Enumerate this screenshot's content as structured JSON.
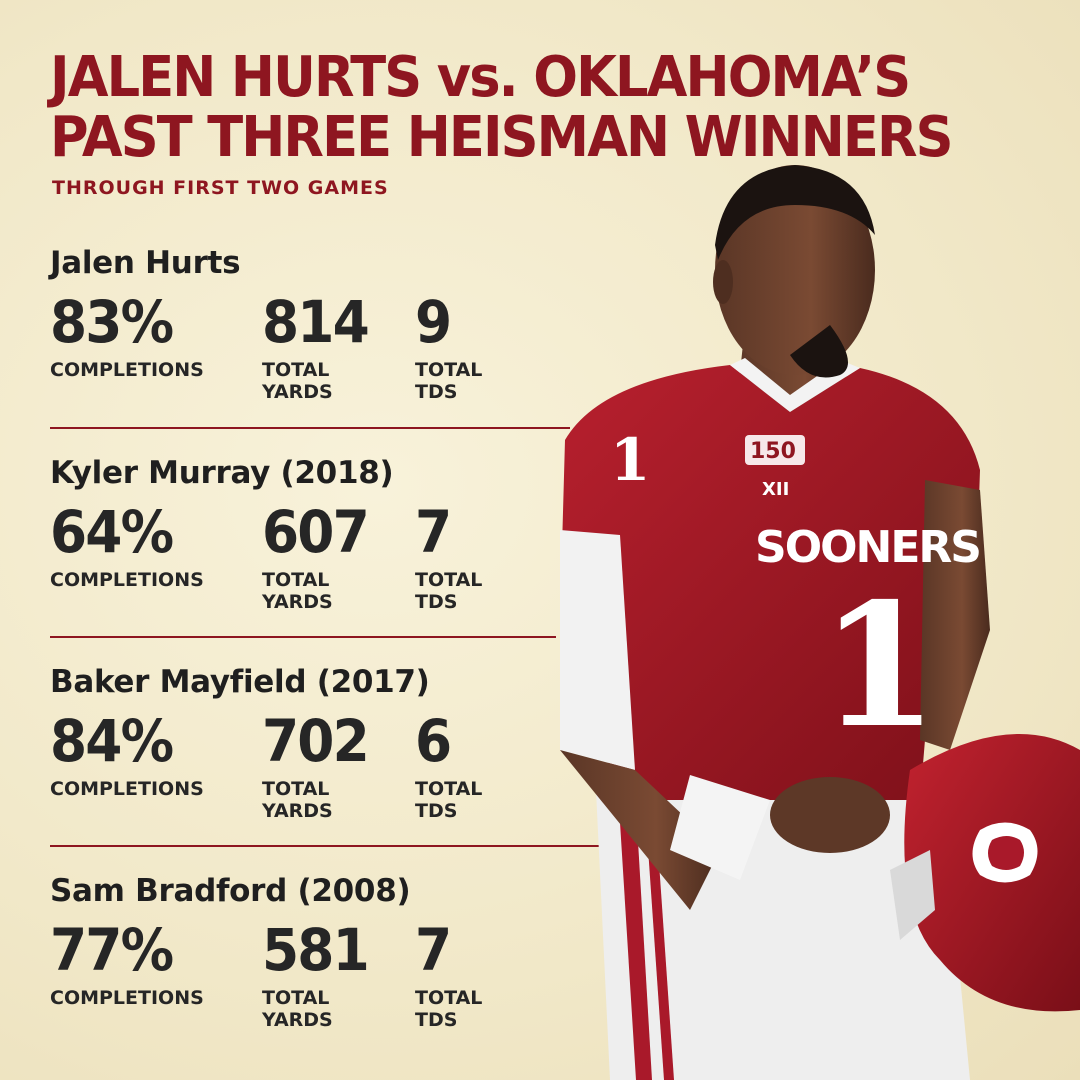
{
  "title_line1": "JALEN HURTS vs. OKLAHOMA’S",
  "title_line2": "PAST THREE HEISMAN WINNERS",
  "subtitle": "THROUGH FIRST TWO GAMES",
  "players": [
    {
      "name": "Jalen Hurts",
      "completions": "83%",
      "yards": "814",
      "tds": "9"
    },
    {
      "name": "Kyler Murray (2018)",
      "completions": "64%",
      "yards": "607",
      "tds": "7"
    },
    {
      "name": "Baker Mayfield (2017)",
      "completions": "84%",
      "yards": "702",
      "tds": "6"
    },
    {
      "name": "Sam Bradford (2008)",
      "completions": "77%",
      "yards": "581",
      "tds": "7"
    }
  ],
  "labels": {
    "completions": "COMPLETIONS",
    "yards": "TOTAL\nYARDS",
    "tds": "TOTAL\nTDs"
  },
  "jersey": {
    "number": "1",
    "wordmark": "SOONERS",
    "patch": "150",
    "conference": "XII"
  },
  "colors": {
    "crimson": "#8e1620",
    "cream": "#f4ecd0",
    "text": "#262626"
  }
}
